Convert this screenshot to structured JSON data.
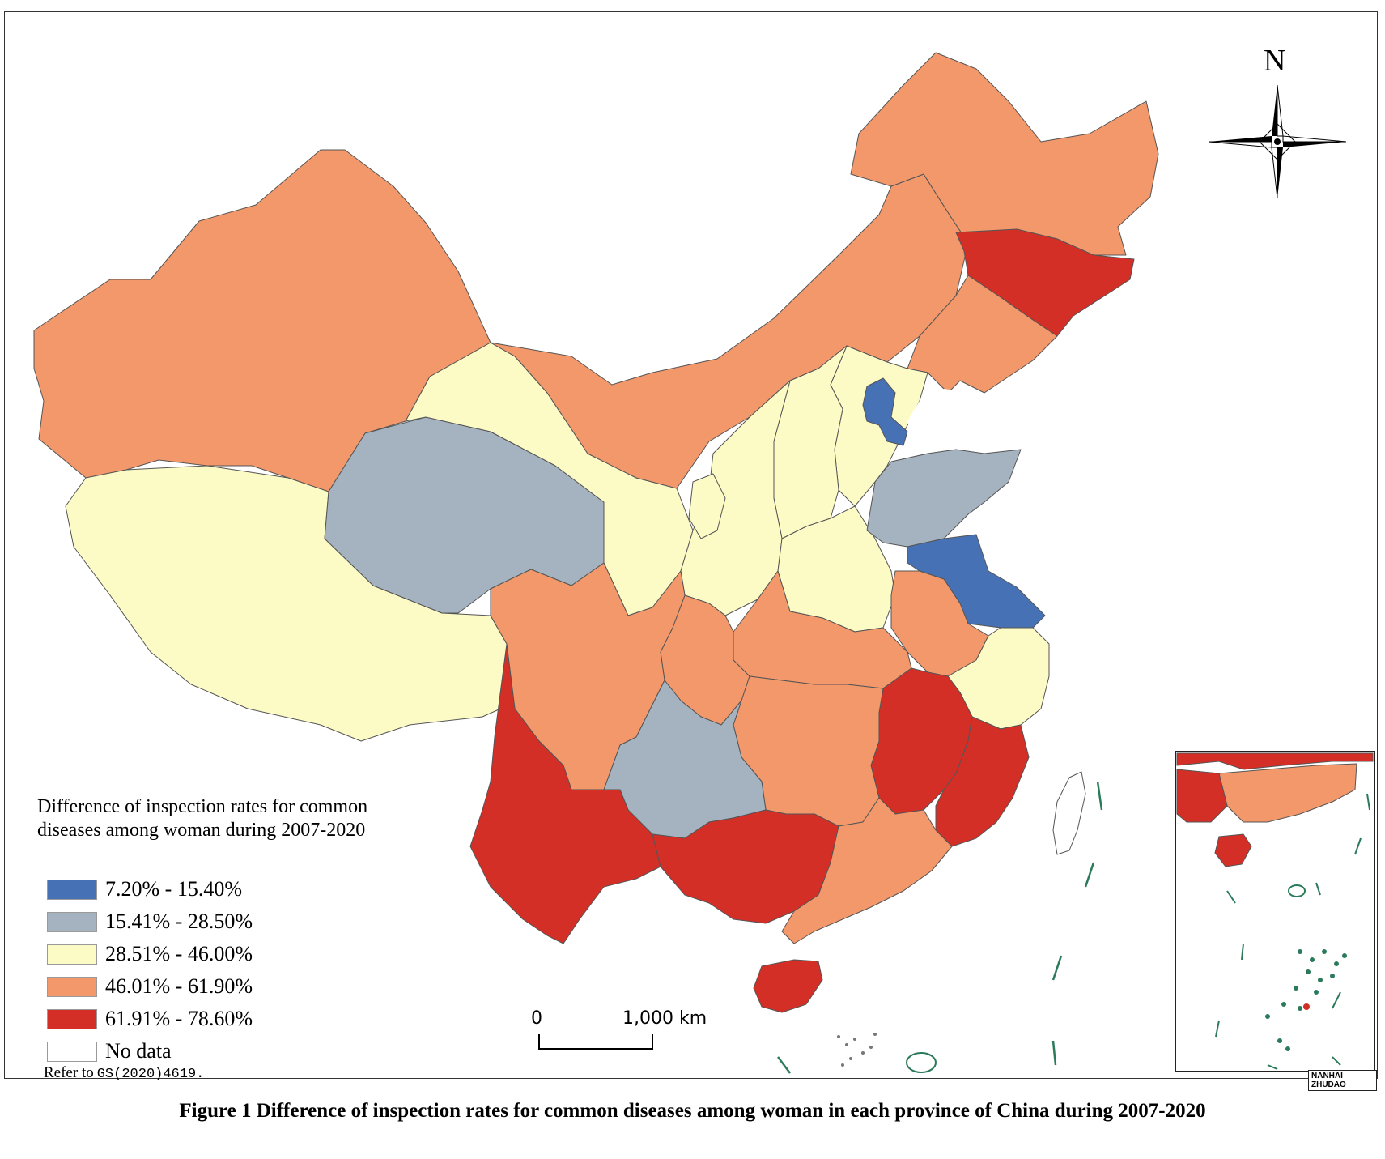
{
  "map": {
    "legend": {
      "title_line1": "Difference of inspection rates for common",
      "title_line2": "diseases among woman during 2007-2020",
      "classes": [
        {
          "label": "7.20% - 15.40%",
          "color": "#4671b4"
        },
        {
          "label": "15.41% - 28.50%",
          "color": "#a4b3bf"
        },
        {
          "label": "28.51% - 46.00%",
          "color": "#fdfbc5"
        },
        {
          "label": "46.01% - 61.90%",
          "color": "#f2986b"
        },
        {
          "label": "61.91% - 78.60%",
          "color": "#d32f27"
        },
        {
          "label": "No data",
          "color": "#ffffff"
        }
      ]
    },
    "refer_label": "Refer to",
    "refer_code": "GS(2020)4619.",
    "scale": {
      "zero": "0",
      "end": "1,000 km"
    },
    "north": "N",
    "inset_label": "NANHAI ZHUDAO",
    "caption": "Figure 1  Difference of inspection rates for common diseases among woman in each province of China during 2007-2020"
  }
}
